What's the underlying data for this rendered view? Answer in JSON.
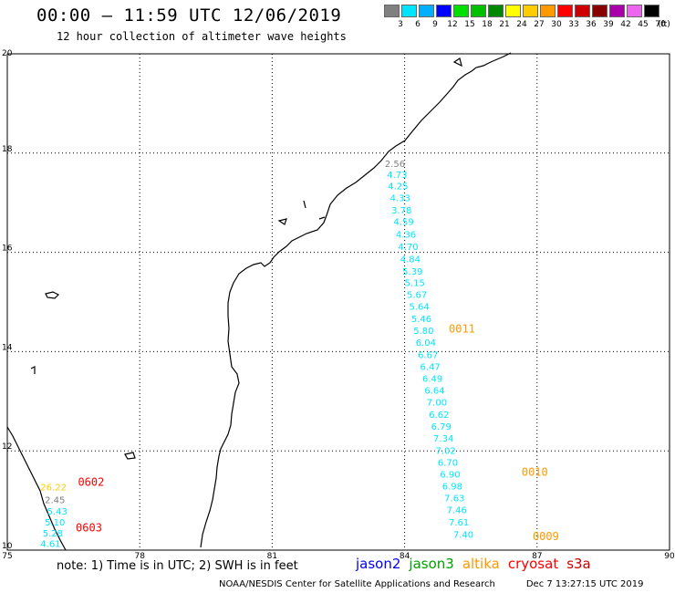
{
  "header": {
    "title": "00:00 – 11:59 UTC 12/06/2019",
    "subtitle": "12 hour collection of altimeter wave heights"
  },
  "legend": {
    "unit": "(ft)",
    "items": [
      {
        "label": "3",
        "color": "#808080"
      },
      {
        "label": "6",
        "color": "#00e5ff"
      },
      {
        "label": "9",
        "color": "#00b0ff"
      },
      {
        "label": "12",
        "color": "#0000ff"
      },
      {
        "label": "15",
        "color": "#00e000"
      },
      {
        "label": "18",
        "color": "#00c000"
      },
      {
        "label": "21",
        "color": "#008800"
      },
      {
        "label": "24",
        "color": "#ffff00"
      },
      {
        "label": "27",
        "color": "#ffcc00"
      },
      {
        "label": "30",
        "color": "#ff9900"
      },
      {
        "label": "33",
        "color": "#ff0000"
      },
      {
        "label": "36",
        "color": "#cc0000"
      },
      {
        "label": "39",
        "color": "#880000"
      },
      {
        "label": "42",
        "color": "#aa00aa"
      },
      {
        "label": "45",
        "color": "#ee66ee"
      },
      {
        "label": "70",
        "color": "#000000"
      }
    ]
  },
  "map": {
    "lon_range": [
      75,
      90
    ],
    "lat_range": [
      10,
      20
    ],
    "lon_ticks": [
      "75",
      "78",
      "81",
      "84",
      "87",
      "90"
    ],
    "lat_ticks": [
      "20",
      "18",
      "16",
      "14",
      "12",
      "10"
    ],
    "grid": "dotted"
  },
  "passes": [
    {
      "label": "0011",
      "color": "#ff9900",
      "lon": 85.0,
      "lat": 14.38
    },
    {
      "label": "0010",
      "color": "#ff9900",
      "lon": 86.65,
      "lat": 11.5
    },
    {
      "label": "0009",
      "color": "#ff9900",
      "lon": 86.9,
      "lat": 10.2
    },
    {
      "label": "0602",
      "color": "#ff0000",
      "lon": 76.6,
      "lat": 11.3
    },
    {
      "label": "0603",
      "color": "#ff0000",
      "lon": 76.55,
      "lat": 10.38
    }
  ],
  "observations": [
    {
      "value": "2.56",
      "color": "#808080",
      "lon": 83.55,
      "lat": 17.72
    },
    {
      "value": "4.73",
      "color": "#00e5ff",
      "lon": 83.6,
      "lat": 17.5
    },
    {
      "value": "4.25",
      "color": "#00e5ff",
      "lon": 83.62,
      "lat": 17.27
    },
    {
      "value": "4.33",
      "color": "#00e5ff",
      "lon": 83.67,
      "lat": 17.03
    },
    {
      "value": "3.78",
      "color": "#00e5ff",
      "lon": 83.7,
      "lat": 16.78
    },
    {
      "value": "4.59",
      "color": "#00e5ff",
      "lon": 83.75,
      "lat": 16.55
    },
    {
      "value": "4.36",
      "color": "#00e5ff",
      "lon": 83.8,
      "lat": 16.3
    },
    {
      "value": "4.70",
      "color": "#00e5ff",
      "lon": 83.85,
      "lat": 16.05
    },
    {
      "value": "4.84",
      "color": "#00e5ff",
      "lon": 83.9,
      "lat": 15.8
    },
    {
      "value": "5.39",
      "color": "#00e5ff",
      "lon": 83.95,
      "lat": 15.55
    },
    {
      "value": "5.15",
      "color": "#00e5ff",
      "lon": 84.0,
      "lat": 15.32
    },
    {
      "value": "5.67",
      "color": "#00e5ff",
      "lon": 84.05,
      "lat": 15.08
    },
    {
      "value": "5.64",
      "color": "#00e5ff",
      "lon": 84.1,
      "lat": 14.84
    },
    {
      "value": "5.46",
      "color": "#00e5ff",
      "lon": 84.15,
      "lat": 14.6
    },
    {
      "value": "5.80",
      "color": "#00e5ff",
      "lon": 84.2,
      "lat": 14.36
    },
    {
      "value": "6.04",
      "color": "#00e5ff",
      "lon": 84.25,
      "lat": 14.12
    },
    {
      "value": "6.67",
      "color": "#00e5ff",
      "lon": 84.3,
      "lat": 13.87
    },
    {
      "value": "6.47",
      "color": "#00e5ff",
      "lon": 84.35,
      "lat": 13.63
    },
    {
      "value": "6.49",
      "color": "#00e5ff",
      "lon": 84.4,
      "lat": 13.39
    },
    {
      "value": "6.64",
      "color": "#00e5ff",
      "lon": 84.45,
      "lat": 13.15
    },
    {
      "value": "7.00",
      "color": "#00e5ff",
      "lon": 84.5,
      "lat": 12.91
    },
    {
      "value": "6.62",
      "color": "#00e5ff",
      "lon": 84.55,
      "lat": 12.67
    },
    {
      "value": "6.79",
      "color": "#00e5ff",
      "lon": 84.6,
      "lat": 12.43
    },
    {
      "value": "7.34",
      "color": "#00e5ff",
      "lon": 84.65,
      "lat": 12.19
    },
    {
      "value": "7.02",
      "color": "#00e5ff",
      "lon": 84.7,
      "lat": 11.94
    },
    {
      "value": "6.70",
      "color": "#00e5ff",
      "lon": 84.75,
      "lat": 11.7
    },
    {
      "value": "6.90",
      "color": "#00e5ff",
      "lon": 84.8,
      "lat": 11.46
    },
    {
      "value": "6.98",
      "color": "#00e5ff",
      "lon": 84.85,
      "lat": 11.22
    },
    {
      "value": "7.63",
      "color": "#00e5ff",
      "lon": 84.9,
      "lat": 10.98
    },
    {
      "value": "7.46",
      "color": "#00e5ff",
      "lon": 84.95,
      "lat": 10.74
    },
    {
      "value": "7.61",
      "color": "#00e5ff",
      "lon": 85.0,
      "lat": 10.5
    },
    {
      "value": "7.40",
      "color": "#00e5ff",
      "lon": 85.1,
      "lat": 10.25
    },
    {
      "value": "26.22",
      "color": "#ffcc00",
      "lon": 75.75,
      "lat": 11.2
    },
    {
      "value": "2.45",
      "color": "#808080",
      "lon": 75.85,
      "lat": 10.95
    },
    {
      "value": "5.43",
      "color": "#00e5ff",
      "lon": 75.9,
      "lat": 10.72
    },
    {
      "value": "5.10",
      "color": "#00e5ff",
      "lon": 75.85,
      "lat": 10.5
    },
    {
      "value": "5.28",
      "color": "#00e5ff",
      "lon": 75.8,
      "lat": 10.28
    },
    {
      "value": "4.61",
      "color": "#00e5ff",
      "lon": 75.75,
      "lat": 10.06
    }
  ],
  "footer": {
    "note": "note: 1) Time is in UTC; 2) SWH is in feet",
    "missions": [
      {
        "name": "jason2",
        "color": "#0000ff"
      },
      {
        "name": "jason3",
        "color": "#00a000"
      },
      {
        "name": "altika",
        "color": "#ff9900"
      },
      {
        "name": "cryosat",
        "color": "#ff0000"
      },
      {
        "name": "s3a",
        "color": "#cc0000"
      }
    ],
    "credit": "NOAA/NESDIS Center for Satellite Applications and Research",
    "timestamp": "Dec  7 13:27:15 UTC 2019"
  }
}
